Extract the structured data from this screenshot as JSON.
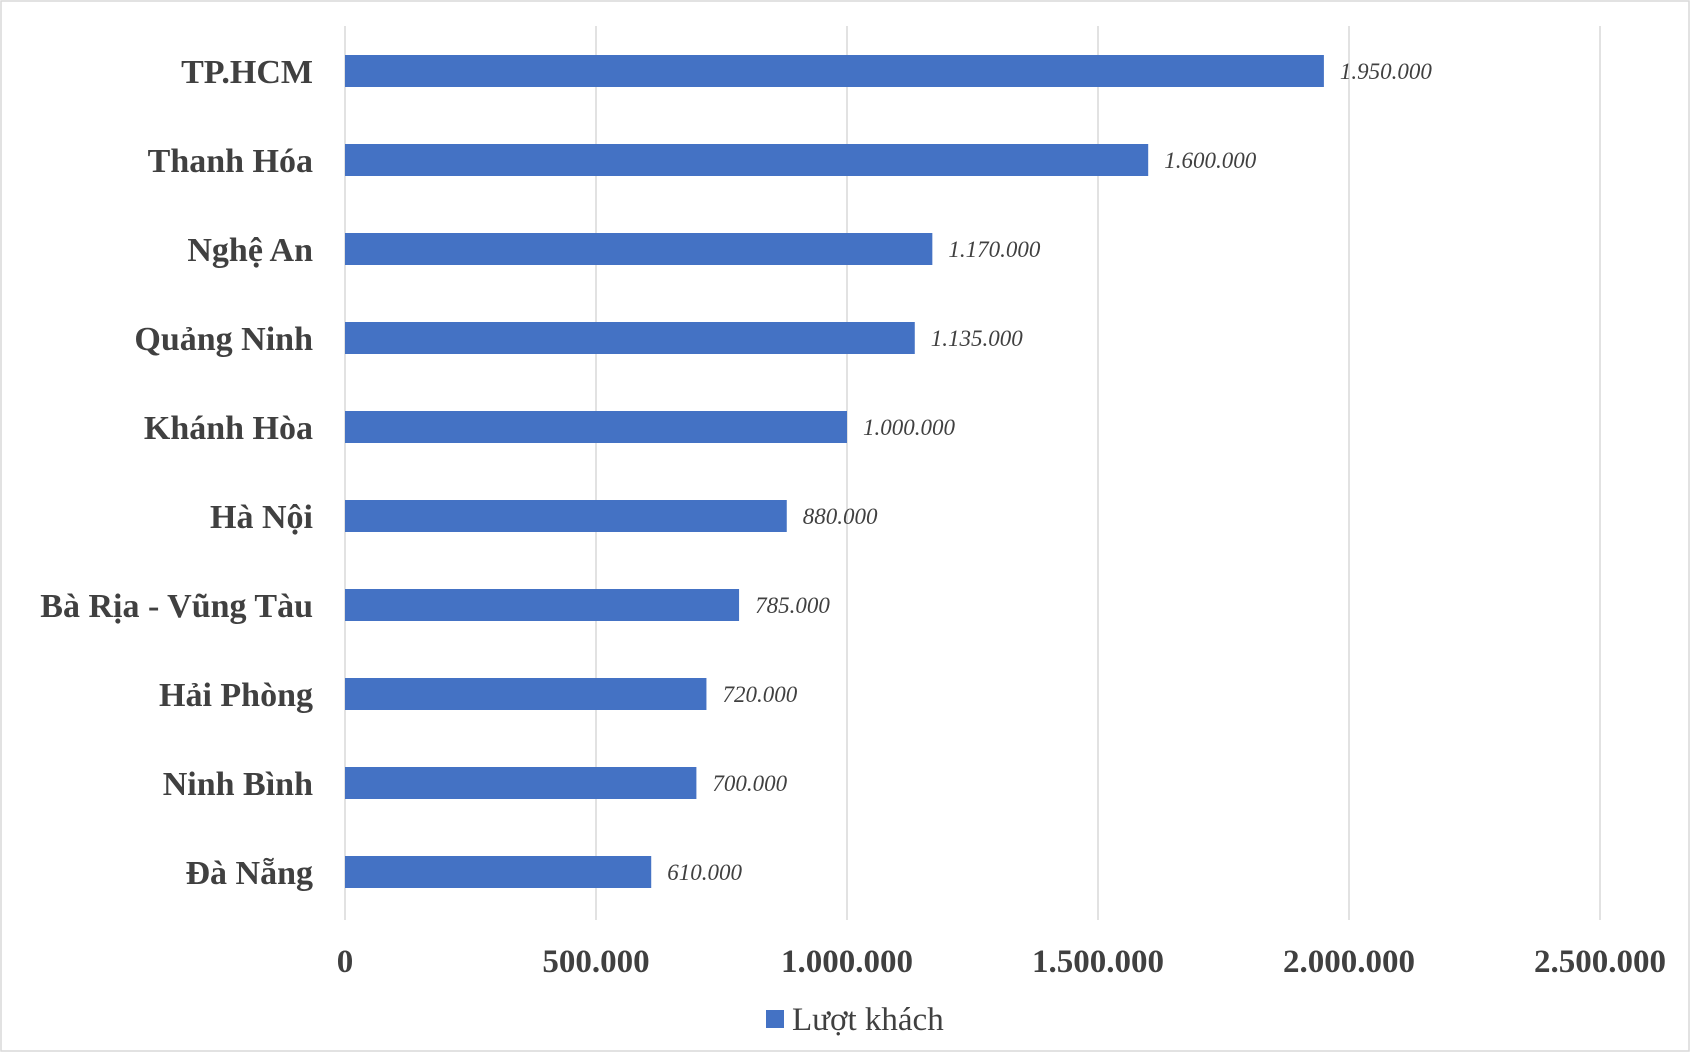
{
  "chart_data": {
    "type": "bar",
    "orientation": "horizontal",
    "title": "",
    "xlabel": "",
    "ylabel": "",
    "categories": [
      "TP.HCM",
      "Thanh Hóa",
      "Nghệ An",
      "Quảng Ninh",
      "Khánh Hòa",
      "Hà Nội",
      "Bà Rịa - Vũng Tàu",
      "Hải Phòng",
      "Ninh Bình",
      "Đà Nẵng"
    ],
    "series": [
      {
        "name": "Lượt khách",
        "values": [
          1950000,
          1600000,
          1170000,
          1135000,
          1000000,
          880000,
          785000,
          720000,
          700000,
          610000
        ],
        "data_labels": [
          "1.950.000",
          "1.600.000",
          "1.170.000",
          "1.135.000",
          "1.000.000",
          "880.000",
          "785.000",
          "720.000",
          "700.000",
          "610.000"
        ],
        "color": "#4472c4"
      }
    ],
    "xlim": [
      0,
      2500000
    ],
    "x_ticks": [
      0,
      500000,
      1000000,
      1500000,
      2000000,
      2500000
    ],
    "x_tick_labels": [
      "0",
      "500.000",
      "1.000.000",
      "1.500.000",
      "2.000.000",
      "2.500.000"
    ],
    "grid": "vertical",
    "legend": {
      "placement": "bottom",
      "entries": [
        "Lượt khách"
      ]
    },
    "colors": {
      "bar": "#4472c4",
      "grid": "#d9d9d9",
      "text": "#404040"
    }
  }
}
